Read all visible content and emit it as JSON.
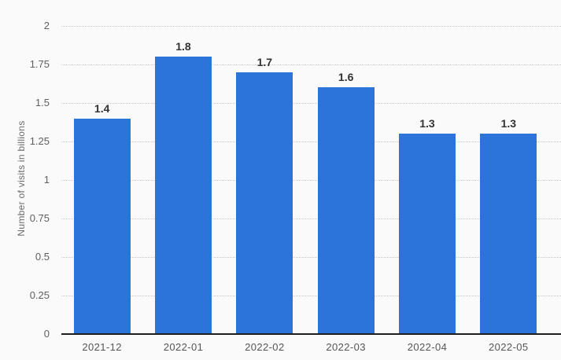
{
  "chart_data": {
    "type": "bar",
    "categories": [
      "2021-12",
      "2022-01",
      "2022-02",
      "2022-03",
      "2022-04",
      "2022-05"
    ],
    "values": [
      1.4,
      1.8,
      1.7,
      1.6,
      1.3,
      1.3
    ],
    "value_labels": [
      "1.4",
      "1.8",
      "1.7",
      "1.6",
      "1.3",
      "1.3"
    ],
    "title": "",
    "xlabel": "",
    "ylabel": "Number of visits in billions",
    "ylim": [
      0,
      2
    ],
    "yticks": [
      0,
      0.25,
      0.5,
      0.75,
      1,
      1.25,
      1.5,
      1.75,
      2
    ],
    "ytick_labels": [
      "0",
      "0.25",
      "0.5",
      "0.75",
      "1",
      "1.25",
      "1.5",
      "1.75",
      "2"
    ],
    "grid": "horizontal-dotted",
    "legend_position": "none",
    "bar_color": "#2d74da",
    "background_color": "#fafafa",
    "axis_line_color": "#1f1f1f",
    "gridline_color": "#c8c8c8",
    "tick_label_color": "#606060",
    "data_label_color": "#323232"
  }
}
